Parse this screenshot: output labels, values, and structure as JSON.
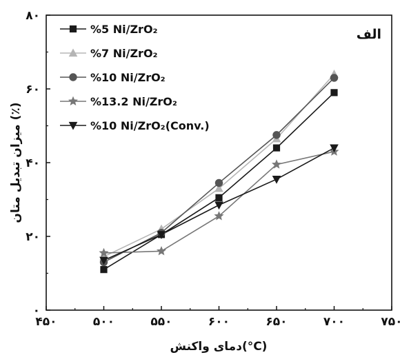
{
  "chart_data": {
    "type": "line",
    "corner_label": "الف",
    "xlabel": "دمای واکنش(°C)",
    "ylabel": "میزان تبدیل متان (٪)",
    "xlim": [
      450,
      750
    ],
    "ylim": [
      0,
      80
    ],
    "x_ticks": [
      450,
      500,
      550,
      600,
      650,
      700,
      750
    ],
    "x_tick_labels": [
      "۴۵۰",
      "۵۰۰",
      "۵۵۰",
      "۶۰۰",
      "۶۵۰",
      "۷۰۰",
      "۷۵۰"
    ],
    "y_ticks": [
      0,
      20,
      40,
      60,
      80
    ],
    "y_tick_labels": [
      "۰",
      "۲۰",
      "۴۰",
      "۶۰",
      "۸۰"
    ],
    "grid": false,
    "legend_position": "top-left",
    "x": [
      500,
      550,
      600,
      650,
      700
    ],
    "series": [
      {
        "name": "%5 Ni/ZrO₂",
        "marker": "square",
        "color": "#1a1a1a",
        "values": [
          11,
          20.5,
          30.5,
          44,
          59
        ]
      },
      {
        "name": "%7 Ni/ZrO₂",
        "marker": "triangle-up",
        "color": "#b5b5b5",
        "values": [
          14.5,
          22,
          33,
          46.5,
          64
        ]
      },
      {
        "name": "%10 Ni/ZrO₂",
        "marker": "circle",
        "color": "#555555",
        "values": [
          13,
          21,
          34.5,
          47.5,
          63
        ]
      },
      {
        "name": "%13.2 Ni/ZrO₂",
        "marker": "star",
        "color": "#777777",
        "values": [
          15.5,
          16,
          25.5,
          39.5,
          43
        ]
      },
      {
        "name": "%10 Ni/ZrO₂(Conv.)",
        "marker": "triangle-down",
        "color": "#1a1a1a",
        "values": [
          13.5,
          20.5,
          28.5,
          35.5,
          44
        ]
      }
    ]
  }
}
